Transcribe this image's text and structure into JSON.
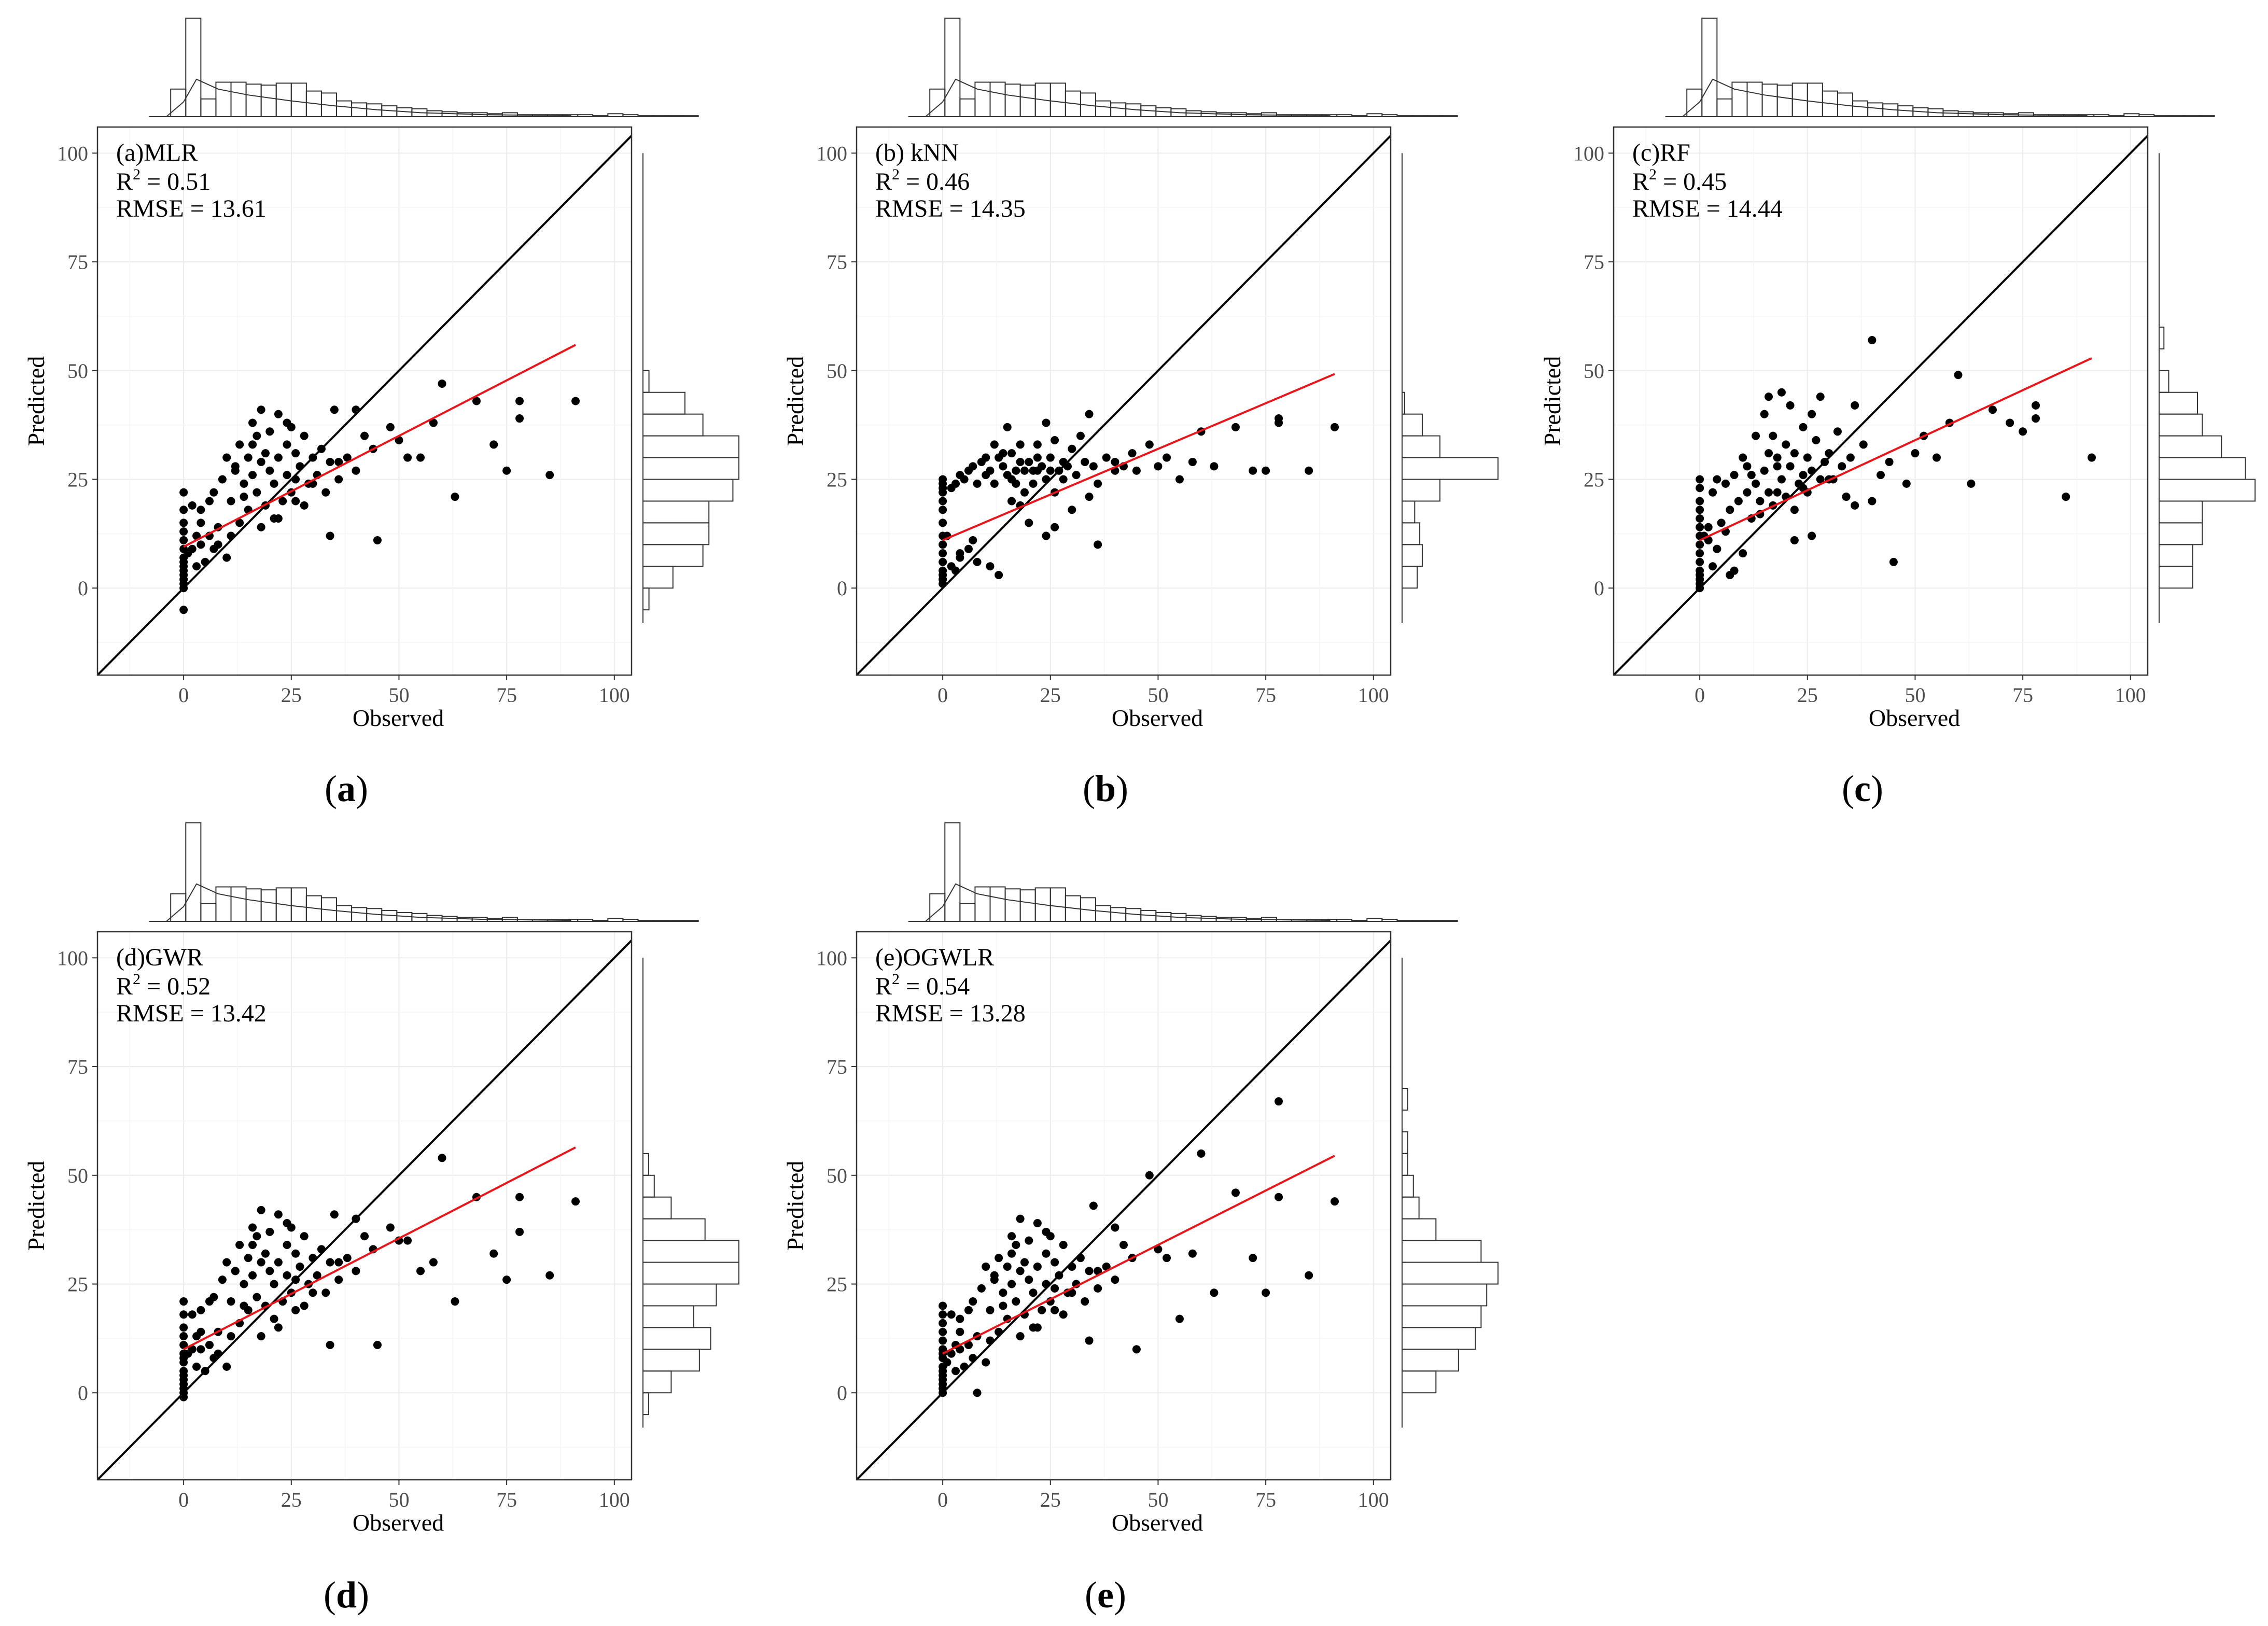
{
  "figure": {
    "panels": [
      {
        "id": "a",
        "caption": "a",
        "label": "(a)",
        "model": "MLR",
        "r2_prefix": "R",
        "r2_sup": "2",
        "r2_value": " = 0.51",
        "rmse_text": "RMSE = 13.61",
        "fit": {
          "intercept": 9.5,
          "slope": 0.51
        }
      },
      {
        "id": "b",
        "caption": "b",
        "label": "(b)",
        "model": " kNN",
        "r2_prefix": "R",
        "r2_sup": "2",
        "r2_value": " = 0.46",
        "rmse_text": "RMSE = 14.35",
        "fit": {
          "intercept": 11.0,
          "slope": 0.42
        }
      },
      {
        "id": "c",
        "caption": "c",
        "label": "(c)",
        "model": "RF",
        "r2_prefix": "R",
        "r2_sup": "2",
        "r2_value": " = 0.45",
        "rmse_text": "RMSE = 14.44",
        "fit": {
          "intercept": 11.0,
          "slope": 0.46
        }
      },
      {
        "id": "d",
        "caption": "d",
        "label": "(d)",
        "model": "GWR",
        "r2_prefix": "R",
        "r2_sup": "2",
        "r2_value": " = 0.52",
        "rmse_text": "RMSE = 13.42",
        "fit": {
          "intercept": 10.0,
          "slope": 0.51
        }
      },
      {
        "id": "e",
        "caption": "e",
        "label": "(e)",
        "model": "OGWLR",
        "r2_prefix": "R",
        "r2_sup": "2",
        "r2_value": " = 0.54",
        "rmse_text": "RMSE = 13.28",
        "fit": {
          "intercept": 9.0,
          "slope": 0.5
        }
      }
    ]
  },
  "chart_data": {
    "type": "scatter",
    "title": "",
    "xlabel": "Observed",
    "ylabel": "Predicted",
    "xlim": [
      -20,
      104
    ],
    "ylim": [
      -20,
      106
    ],
    "xticks": [
      0,
      25,
      50,
      75,
      100
    ],
    "yticks": [
      0,
      25,
      50,
      75,
      100
    ],
    "grid": true,
    "reference_line": "1:1",
    "fit_color": "#e8161b",
    "point_color": "#000000",
    "line_color": "#000000",
    "observed_hist": [
      0.28,
      1.0,
      0.18,
      0.35,
      0.35,
      0.33,
      0.32,
      0.34,
      0.34,
      0.26,
      0.24,
      0.16,
      0.14,
      0.13,
      0.11,
      0.09,
      0.08,
      0.06,
      0.05,
      0.04,
      0.04,
      0.03,
      0.04,
      0.02,
      0.02,
      0.02,
      0.02,
      0.02,
      0.01,
      0.03,
      0.02,
      0.01,
      0.01,
      0.01,
      0.01
    ],
    "observed_density": [
      [
        -4,
        0
      ],
      [
        0,
        0.15
      ],
      [
        3,
        0.38
      ],
      [
        8,
        0.28
      ],
      [
        15,
        0.22
      ],
      [
        25,
        0.16
      ],
      [
        35,
        0.11
      ],
      [
        45,
        0.07
      ],
      [
        55,
        0.04
      ],
      [
        70,
        0.02
      ],
      [
        90,
        0.01
      ]
    ],
    "panels": [
      {
        "id": "a",
        "observed": [
          0,
          0,
          0,
          0,
          0,
          0,
          0,
          0,
          0,
          0,
          0,
          0,
          0,
          0,
          0,
          1,
          2,
          3,
          3,
          4,
          4,
          5,
          6,
          7,
          7,
          8,
          9,
          10,
          10,
          11,
          11,
          12,
          13,
          13,
          14,
          15,
          15,
          16,
          16,
          17,
          17,
          18,
          18,
          19,
          19,
          20,
          20,
          21,
          21,
          22,
          22,
          23,
          24,
          24,
          25,
          25,
          26,
          26,
          27,
          28,
          28,
          29,
          30,
          31,
          32,
          33,
          34,
          35,
          36,
          38,
          40,
          42,
          44,
          45,
          48,
          50,
          52,
          55,
          58,
          60,
          63,
          68,
          72,
          75,
          78,
          78,
          85,
          91,
          2,
          4,
          6,
          8,
          12,
          14,
          16,
          18,
          22,
          24,
          26,
          30,
          34,
          36,
          40
        ],
        "predicted": [
          0,
          1,
          2,
          3,
          4,
          5,
          6,
          7,
          9,
          11,
          13,
          15,
          18,
          22,
          -5,
          8,
          9,
          5,
          12,
          18,
          10,
          6,
          20,
          22,
          9,
          14,
          25,
          7,
          30,
          12,
          20,
          28,
          15,
          33,
          24,
          18,
          30,
          38,
          26,
          35,
          22,
          29,
          41,
          19,
          31,
          27,
          36,
          16,
          24,
          30,
          40,
          20,
          33,
          26,
          22,
          37,
          25,
          31,
          28,
          19,
          35,
          24,
          30,
          26,
          32,
          22,
          29,
          41,
          25,
          30,
          27,
          35,
          32,
          11,
          37,
          34,
          30,
          30,
          38,
          47,
          21,
          43,
          33,
          27,
          43,
          39,
          26,
          43,
          19,
          15,
          12,
          10,
          27,
          21,
          33,
          14,
          16,
          38,
          20,
          24,
          12,
          29,
          41
        ]
      },
      {
        "id": "b",
        "observed": [
          0,
          0,
          0,
          0,
          0,
          0,
          0,
          0,
          0,
          0,
          0,
          0,
          0,
          0,
          0,
          1,
          2,
          3,
          3,
          4,
          4,
          5,
          6,
          7,
          7,
          8,
          9,
          10,
          10,
          11,
          11,
          12,
          13,
          13,
          14,
          15,
          15,
          16,
          16,
          17,
          17,
          18,
          18,
          19,
          19,
          20,
          20,
          21,
          21,
          22,
          22,
          23,
          24,
          24,
          25,
          25,
          26,
          26,
          27,
          28,
          28,
          29,
          30,
          31,
          32,
          33,
          34,
          35,
          36,
          38,
          40,
          42,
          44,
          45,
          48,
          50,
          52,
          55,
          58,
          60,
          63,
          68,
          72,
          75,
          78,
          78,
          85,
          91,
          2,
          4,
          6,
          8,
          12,
          14,
          16,
          18,
          22,
          24,
          26,
          30,
          34,
          36,
          40
        ],
        "predicted": [
          1,
          2,
          3,
          4,
          6,
          8,
          10,
          12,
          15,
          18,
          20,
          22,
          24,
          25,
          23,
          12,
          23,
          24,
          4,
          26,
          8,
          25,
          27,
          28,
          11,
          24,
          29,
          26,
          30,
          5,
          27,
          24,
          3,
          30,
          28,
          26,
          37,
          25,
          31,
          24,
          27,
          29,
          33,
          22,
          27,
          29,
          15,
          27,
          24,
          30,
          33,
          28,
          25,
          38,
          30,
          27,
          22,
          34,
          27,
          29,
          25,
          28,
          32,
          26,
          35,
          29,
          40,
          28,
          24,
          30,
          27,
          28,
          31,
          27,
          33,
          28,
          30,
          25,
          29,
          36,
          28,
          37,
          27,
          27,
          39,
          38,
          27,
          37,
          5,
          7,
          9,
          6,
          33,
          31,
          20,
          19,
          27,
          12,
          14,
          18,
          21,
          10,
          29
        ]
      },
      {
        "id": "c",
        "observed": [
          0,
          0,
          0,
          0,
          0,
          0,
          0,
          0,
          0,
          0,
          0,
          0,
          0,
          0,
          0,
          1,
          2,
          3,
          3,
          4,
          4,
          5,
          6,
          7,
          7,
          8,
          9,
          10,
          10,
          11,
          11,
          12,
          13,
          13,
          14,
          15,
          15,
          16,
          16,
          17,
          17,
          18,
          18,
          19,
          19,
          20,
          20,
          21,
          21,
          22,
          22,
          23,
          24,
          24,
          25,
          25,
          26,
          26,
          27,
          28,
          28,
          29,
          30,
          31,
          32,
          33,
          34,
          35,
          36,
          38,
          40,
          42,
          44,
          45,
          48,
          50,
          52,
          55,
          58,
          60,
          63,
          68,
          72,
          75,
          78,
          78,
          85,
          91,
          2,
          4,
          6,
          8,
          12,
          14,
          16,
          18,
          22,
          24,
          26,
          30,
          34,
          36,
          40
        ],
        "predicted": [
          0,
          1,
          2,
          3,
          4,
          6,
          8,
          10,
          12,
          14,
          16,
          18,
          20,
          23,
          25,
          12,
          14,
          5,
          22,
          25,
          9,
          15,
          24,
          18,
          3,
          26,
          20,
          30,
          8,
          22,
          28,
          16,
          35,
          24,
          20,
          40,
          27,
          31,
          44,
          19,
          35,
          22,
          28,
          45,
          25,
          33,
          21,
          42,
          28,
          18,
          31,
          24,
          37,
          26,
          30,
          22,
          40,
          27,
          34,
          25,
          44,
          29,
          31,
          25,
          36,
          28,
          21,
          30,
          42,
          33,
          57,
          26,
          29,
          6,
          24,
          31,
          35,
          30,
          38,
          49,
          24,
          41,
          38,
          36,
          42,
          39,
          21,
          30,
          11,
          9,
          13,
          4,
          26,
          17,
          22,
          30,
          11,
          23,
          12,
          25,
          21,
          19,
          20
        ]
      },
      {
        "id": "d",
        "observed": [
          0,
          0,
          0,
          0,
          0,
          0,
          0,
          0,
          0,
          0,
          0,
          0,
          0,
          0,
          0,
          1,
          2,
          3,
          3,
          4,
          4,
          5,
          6,
          7,
          7,
          8,
          9,
          10,
          10,
          11,
          11,
          12,
          13,
          13,
          14,
          15,
          15,
          16,
          16,
          17,
          17,
          18,
          18,
          19,
          19,
          20,
          20,
          21,
          21,
          22,
          22,
          23,
          24,
          24,
          25,
          25,
          26,
          26,
          27,
          28,
          28,
          29,
          30,
          31,
          32,
          33,
          34,
          35,
          36,
          38,
          40,
          42,
          44,
          45,
          48,
          50,
          52,
          55,
          58,
          60,
          63,
          68,
          72,
          75,
          78,
          78,
          85,
          91,
          2,
          4,
          6,
          8,
          12,
          14,
          16,
          18,
          22,
          24,
          26,
          30,
          34,
          36,
          40
        ],
        "predicted": [
          0,
          1,
          2,
          3,
          4,
          5,
          7,
          9,
          11,
          13,
          15,
          18,
          21,
          -1,
          8,
          9,
          10,
          6,
          13,
          19,
          10,
          5,
          21,
          22,
          8,
          14,
          26,
          6,
          30,
          13,
          21,
          28,
          16,
          34,
          25,
          19,
          31,
          38,
          27,
          36,
          22,
          30,
          42,
          20,
          32,
          28,
          37,
          17,
          25,
          30,
          41,
          21,
          34,
          27,
          23,
          38,
          26,
          32,
          29,
          20,
          36,
          25,
          31,
          27,
          33,
          23,
          30,
          41,
          26,
          31,
          28,
          36,
          33,
          11,
          38,
          35,
          35,
          28,
          30,
          54,
          21,
          45,
          32,
          26,
          45,
          37,
          27,
          44,
          18,
          14,
          11,
          9,
          28,
          20,
          34,
          13,
          15,
          39,
          19,
          23,
          11,
          30,
          40
        ]
      },
      {
        "id": "e",
        "observed": [
          0,
          0,
          0,
          0,
          0,
          0,
          0,
          0,
          0,
          0,
          0,
          0,
          0,
          0,
          0,
          1,
          2,
          3,
          3,
          4,
          4,
          5,
          6,
          7,
          7,
          8,
          9,
          10,
          10,
          11,
          11,
          12,
          13,
          13,
          14,
          15,
          15,
          16,
          16,
          17,
          17,
          18,
          18,
          19,
          19,
          20,
          20,
          21,
          21,
          22,
          22,
          23,
          24,
          24,
          25,
          25,
          26,
          26,
          27,
          28,
          28,
          29,
          30,
          31,
          32,
          33,
          34,
          35,
          36,
          38,
          40,
          42,
          44,
          45,
          48,
          50,
          52,
          55,
          58,
          60,
          63,
          68,
          72,
          75,
          78,
          78,
          85,
          91,
          2,
          4,
          6,
          8,
          12,
          14,
          16,
          18,
          22,
          24,
          26,
          30,
          34,
          36,
          40
        ],
        "predicted": [
          0,
          1,
          2,
          3,
          4,
          5,
          6,
          8,
          10,
          12,
          14,
          16,
          18,
          20,
          9,
          7,
          9,
          5,
          11,
          17,
          10,
          6,
          19,
          21,
          8,
          13,
          24,
          7,
          29,
          12,
          19,
          27,
          14,
          31,
          23,
          17,
          29,
          36,
          25,
          34,
          21,
          28,
          40,
          18,
          30,
          26,
          35,
          15,
          23,
          29,
          39,
          19,
          32,
          25,
          21,
          36,
          24,
          30,
          27,
          18,
          34,
          23,
          29,
          25,
          31,
          21,
          28,
          43,
          24,
          29,
          26,
          34,
          31,
          10,
          50,
          33,
          31,
          17,
          32,
          55,
          23,
          46,
          31,
          23,
          67,
          45,
          27,
          44,
          18,
          14,
          11,
          0,
          26,
          20,
          32,
          13,
          15,
          37,
          19,
          23,
          12,
          28,
          38
        ]
      }
    ]
  }
}
